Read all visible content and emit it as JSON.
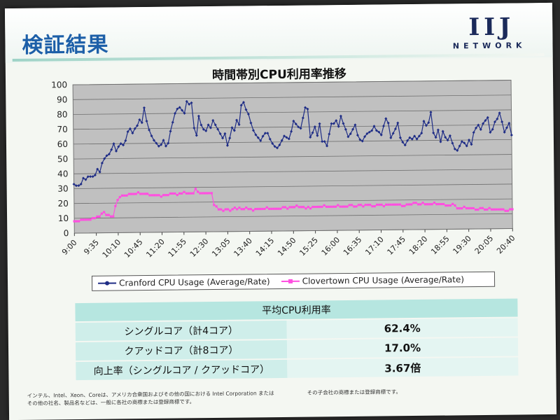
{
  "slide": {
    "title": "検証結果",
    "logo_main": "IIJ",
    "logo_sub": "NETWORK"
  },
  "chart_data": {
    "type": "line",
    "title": "時間帯別CPU利用率推移",
    "ylim": [
      0,
      100
    ],
    "yticks": [
      0,
      10,
      20,
      30,
      40,
      50,
      60,
      70,
      80,
      90,
      100
    ],
    "grid": true,
    "legend_position": "bottom",
    "x_tick_labels": [
      "9:00",
      "9:35",
      "10:10",
      "10:45",
      "11:20",
      "11:55",
      "12:30",
      "13:05",
      "13:40",
      "14:15",
      "14:50",
      "15:25",
      "16:00",
      "16:35",
      "17:10",
      "17:45",
      "18:20",
      "18:55",
      "19:30",
      "20:05",
      "20:40"
    ],
    "series": [
      {
        "name": "Cranford CPU Usage (Average/Rate)",
        "color": "#1f2d86",
        "marker": "diamond",
        "values": [
          33,
          32,
          32,
          33,
          37,
          36,
          38,
          38,
          38,
          39,
          43,
          41,
          47,
          50,
          52,
          53,
          56,
          60,
          55,
          58,
          60,
          59,
          62,
          68,
          70,
          67,
          70,
          72,
          76,
          74,
          84,
          75,
          69,
          65,
          62,
          60,
          58,
          59,
          62,
          58,
          60,
          68,
          74,
          80,
          83,
          84,
          82,
          80,
          88,
          86,
          87,
          70,
          65,
          78,
          72,
          69,
          68,
          72,
          70,
          75,
          72,
          69,
          66,
          63,
          66,
          58,
          63,
          70,
          68,
          75,
          72,
          85,
          87,
          82,
          79,
          73,
          68,
          65,
          63,
          61,
          64,
          66,
          66,
          62,
          59,
          57,
          56,
          58,
          61,
          64,
          63,
          62,
          67,
          74,
          72,
          70,
          69,
          76,
          83,
          82,
          63,
          66,
          70,
          64,
          72,
          60,
          60,
          57,
          65,
          72,
          72,
          74,
          70,
          77,
          72,
          68,
          63,
          65,
          68,
          71,
          64,
          61,
          60,
          63,
          65,
          66,
          67,
          70,
          67,
          66,
          64,
          70,
          75,
          72,
          62,
          65,
          68,
          72,
          62,
          59,
          57,
          60,
          62,
          61,
          63,
          61,
          63,
          65,
          73,
          70,
          72,
          79,
          65,
          62,
          67,
          59,
          66,
          62,
          60,
          63,
          58,
          54,
          53,
          56,
          59,
          58,
          56,
          60,
          57,
          65,
          68,
          70,
          67,
          71,
          73,
          75,
          65,
          67,
          72,
          74,
          78,
          72,
          65,
          68,
          71,
          63
        ]
      },
      {
        "name": "Clovertown CPU Usage (Average/Rate)",
        "color": "#ff4fe0",
        "marker": "square",
        "values": [
          8,
          8,
          8,
          9,
          9,
          9,
          9,
          9,
          10,
          10,
          11,
          11,
          13,
          14,
          12,
          12,
          11,
          11,
          18,
          22,
          24,
          25,
          25,
          25,
          26,
          26,
          26,
          26,
          27,
          26,
          26,
          26,
          26,
          25,
          25,
          25,
          25,
          25,
          24,
          25,
          25,
          25,
          26,
          26,
          26,
          25,
          26,
          26,
          27,
          26,
          26,
          26,
          26,
          29,
          27,
          26,
          26,
          26,
          26,
          26,
          26,
          18,
          17,
          15,
          15,
          14,
          15,
          15,
          14,
          15,
          16,
          15,
          16,
          15,
          15,
          16,
          15,
          15,
          14,
          15,
          15,
          15,
          15,
          15,
          16,
          15,
          15,
          15,
          15,
          15,
          15,
          16,
          16,
          15,
          16,
          16,
          16,
          17,
          16,
          16,
          16,
          15,
          16,
          15,
          16,
          16,
          16,
          16,
          16,
          17,
          16,
          16,
          16,
          16,
          16,
          17,
          16,
          16,
          16,
          16,
          17,
          17,
          16,
          16,
          17,
          17,
          16,
          17,
          17,
          17,
          16,
          16,
          17,
          17,
          17,
          16,
          17,
          17,
          17,
          17,
          17,
          17,
          17,
          16,
          16,
          17,
          17,
          17,
          18,
          18,
          17,
          17,
          18,
          17,
          17,
          17,
          17,
          18,
          17,
          17,
          17,
          17,
          16,
          16,
          16,
          17,
          16,
          14,
          14,
          14,
          15,
          14,
          14,
          14,
          14,
          13,
          13,
          14,
          14,
          13,
          13,
          14,
          13,
          13,
          13,
          13,
          13,
          13,
          12,
          12,
          13,
          13
        ]
      }
    ]
  },
  "table": {
    "header": "平均CPU利用率",
    "rows": [
      {
        "label": "シングルコア（計4コア）",
        "value": "62.4%"
      },
      {
        "label": "クアッドコア（計8コア）",
        "value": "17.0%"
      },
      {
        "label": "向上率（シングルコア / クアッドコア）",
        "value": "3.67倍"
      }
    ]
  },
  "footnote": {
    "line1": "インテル、Intel、Xeon、Coreは、アメリカ合衆国およびその他の国における Intel Corporation または",
    "line2": "その他の社名、製品名などは、一般に各社の商標または登録商標です。",
    "right": "その子会社の商標または登録商標です。"
  }
}
